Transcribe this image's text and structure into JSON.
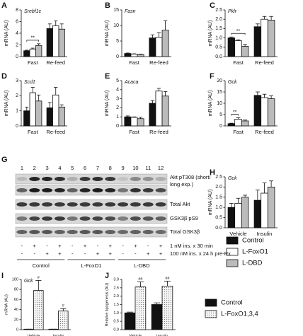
{
  "chart_data": [
    {
      "type": "bar",
      "label": "A",
      "title": "Srebf1c",
      "ylabel": "mRNA (AU)",
      "categories": [
        "Fast",
        "Re-feed"
      ],
      "series": [
        {
          "name": "Control",
          "color": "#111111",
          "values": [
            1.0,
            4.8
          ],
          "errors": [
            0.1,
            0.8
          ]
        },
        {
          "name": "L-FoxO1",
          "color": "#ffffff",
          "values": [
            1.3,
            5.3
          ],
          "errors": [
            0.15,
            0.8
          ]
        },
        {
          "name": "L-DBD",
          "color": "#bbbbbb",
          "values": [
            1.9,
            4.7
          ],
          "errors": [
            0.3,
            0.9
          ]
        }
      ],
      "ylim": [
        0,
        8
      ],
      "yticks": [
        0,
        2,
        4,
        6,
        8
      ],
      "significance": [
        {
          "text": "**",
          "category": "Fast",
          "between": [
            "Control",
            "L-DBD"
          ]
        }
      ]
    },
    {
      "type": "bar",
      "label": "B",
      "title": "Fasn",
      "ylabel": "mRNA (AU)",
      "categories": [
        "Fast",
        "Re-feed"
      ],
      "series": [
        {
          "name": "Control",
          "color": "#111111",
          "values": [
            1.0,
            6.0
          ],
          "errors": [
            0.15,
            1.0
          ]
        },
        {
          "name": "L-FoxO1",
          "color": "#ffffff",
          "values": [
            0.8,
            6.2
          ],
          "errors": [
            0.1,
            1.5
          ]
        },
        {
          "name": "L-DBD",
          "color": "#bbbbbb",
          "values": [
            0.7,
            8.5
          ],
          "errors": [
            0.1,
            3.0
          ]
        }
      ],
      "ylim": [
        0,
        15
      ],
      "yticks": [
        0,
        5,
        10,
        15
      ]
    },
    {
      "type": "bar",
      "label": "C",
      "title": "Pklr",
      "ylabel": "mRNA (AU)",
      "categories": [
        "Fast",
        "Re-feed"
      ],
      "series": [
        {
          "name": "Control",
          "color": "#111111",
          "values": [
            1.0,
            1.6
          ],
          "errors": [
            0.05,
            0.15
          ]
        },
        {
          "name": "L-FoxO1",
          "color": "#ffffff",
          "values": [
            0.85,
            2.0
          ],
          "errors": [
            0.05,
            0.15
          ]
        },
        {
          "name": "L-DBD",
          "color": "#bbbbbb",
          "values": [
            0.55,
            1.95
          ],
          "errors": [
            0.1,
            0.2
          ]
        }
      ],
      "ylim": [
        0,
        2.5
      ],
      "yticks": [
        {
          "value": 0,
          "label": "0.0"
        },
        0.5,
        {
          "value": 1,
          "label": "1.0"
        },
        1.5,
        {
          "value": 2,
          "label": "2.0"
        },
        2.5
      ],
      "significance": [
        {
          "text": "**",
          "category": "Fast",
          "between": [
            "Control",
            "L-DBD"
          ]
        }
      ]
    },
    {
      "type": "bar",
      "label": "D",
      "title": "Scd1",
      "ylabel": "mRNA (AU)",
      "categories": [
        "Fast",
        "Re-feed"
      ],
      "series": [
        {
          "name": "Control",
          "color": "#111111",
          "values": [
            1.0,
            1.2
          ],
          "errors": [
            0.25,
            0.35
          ]
        },
        {
          "name": "L-FoxO1",
          "color": "#ffffff",
          "values": [
            2.2,
            2.05
          ],
          "errors": [
            0.35,
            0.5
          ]
        },
        {
          "name": "L-DBD",
          "color": "#bbbbbb",
          "values": [
            1.65,
            1.25
          ],
          "errors": [
            0.4,
            0.15
          ]
        }
      ],
      "ylim": [
        0,
        3
      ],
      "yticks": [
        0,
        1,
        2,
        3
      ]
    },
    {
      "type": "bar",
      "label": "E",
      "title": "Acaca",
      "ylabel": "mRNA (AU)",
      "categories": [
        "Fast",
        "Re-feed"
      ],
      "series": [
        {
          "name": "Control",
          "color": "#111111",
          "values": [
            1.0,
            2.5
          ],
          "errors": [
            0.1,
            0.3
          ]
        },
        {
          "name": "L-FoxO1",
          "color": "#ffffff",
          "values": [
            0.95,
            3.85
          ],
          "errors": [
            0.05,
            0.3
          ]
        },
        {
          "name": "L-DBD",
          "color": "#bbbbbb",
          "values": [
            0.8,
            3.3
          ],
          "errors": [
            0.15,
            0.5
          ]
        }
      ],
      "ylim": [
        0,
        5
      ],
      "yticks": [
        0,
        1,
        2,
        3,
        4,
        5
      ]
    },
    {
      "type": "bar",
      "label": "F",
      "title": "Gck",
      "ylabel": "mRNA (AU)",
      "categories": [
        "Fast",
        "Re-feed"
      ],
      "series": [
        {
          "name": "Control",
          "color": "#111111",
          "values": [
            1.0,
            13.5
          ],
          "errors": [
            0.2,
            1.5
          ]
        },
        {
          "name": "L-FoxO1",
          "color": "#ffffff",
          "values": [
            3.0,
            12.5
          ],
          "errors": [
            0.6,
            1.5
          ]
        },
        {
          "name": "L-DBD",
          "color": "#bbbbbb",
          "values": [
            2.2,
            12.0
          ],
          "errors": [
            0.4,
            1.3
          ]
        }
      ],
      "ylim": [
        0,
        20
      ],
      "yticks": [
        0,
        5,
        10,
        15,
        20
      ],
      "significance": [
        {
          "text": "**",
          "category": "Fast",
          "between": [
            "Control",
            "L-FoxO1"
          ]
        }
      ]
    },
    {
      "type": "bar",
      "label": "H",
      "title": "Gck",
      "ylabel": "mRNA (AU)",
      "categories": [
        "Vehicle",
        "Insulin"
      ],
      "series": [
        {
          "name": "Control",
          "color": "#111111",
          "values": [
            1.0,
            1.35
          ],
          "errors": [
            0.2,
            0.5
          ]
        },
        {
          "name": "L-FoxO1",
          "color": "#ffffff",
          "values": [
            1.2,
            1.7
          ],
          "errors": [
            0.25,
            0.5
          ]
        },
        {
          "name": "L-DBD",
          "color": "#bbbbbb",
          "values": [
            1.5,
            2.0
          ],
          "errors": [
            0.1,
            0.3
          ]
        }
      ],
      "ylim": [
        0,
        2.5
      ],
      "yticks": [
        {
          "value": 0,
          "label": "0.0"
        },
        0.5,
        {
          "value": 1,
          "label": "1.0"
        },
        1.5,
        {
          "value": 2,
          "label": "2.0"
        },
        2.5
      ],
      "legend": true
    },
    {
      "type": "bar",
      "label": "I",
      "title": "Gck",
      "ylabel": "mRNA (AU)",
      "categories": [
        "Vehicle",
        "Insulin"
      ],
      "series": [
        {
          "name": "Control",
          "color": "#111111",
          "values": [
            1,
            1
          ],
          "errors": [
            0,
            0
          ]
        },
        {
          "name": "L-FoxO1,3,4",
          "color": "#eeeeee",
          "pattern": "dotted",
          "values": [
            78,
            37
          ],
          "errors": [
            20,
            5
          ]
        }
      ],
      "ylim": [
        0,
        100
      ],
      "yticks": [
        0,
        20,
        40,
        60,
        80,
        100
      ],
      "significance": [
        {
          "text": "#",
          "category": "Vehicle",
          "series": "L-FoxO1,3,4"
        },
        {
          "text": "#",
          "category": "Insulin",
          "series": "L-FoxO1,3,4"
        }
      ]
    },
    {
      "type": "bar",
      "label": "J",
      "ylabel": "Relative lipogenesis (AU)",
      "categories": [
        "Vehicle",
        "Insulin"
      ],
      "series": [
        {
          "name": "Control",
          "color": "#111111",
          "values": [
            1.0,
            1.5
          ],
          "errors": [
            0.05,
            0.1
          ]
        },
        {
          "name": "L-FoxO1,3,4",
          "color": "#eeeeee",
          "pattern": "dotted",
          "values": [
            2.55,
            2.6
          ],
          "errors": [
            0.3,
            0.3
          ]
        }
      ],
      "ylim": [
        0,
        3
      ],
      "yticks": [
        {
          "value": 0,
          "label": "0.0"
        },
        0.5,
        {
          "value": 1,
          "label": "1.0"
        },
        1.5,
        {
          "value": 2,
          "label": "2.0"
        },
        2.5,
        {
          "value": 3,
          "label": "3.0"
        }
      ],
      "significance": [
        {
          "text": "##",
          "category": "Vehicle",
          "series": "L-FoxO1,3,4"
        },
        {
          "text": "##",
          "category": "Insulin",
          "series": "L-FoxO1,3,4"
        }
      ],
      "legend": true
    }
  ],
  "blot": {
    "label": "G",
    "lanes": [
      "1",
      "2",
      "3",
      "4",
      "5",
      "6",
      "7",
      "8",
      "9",
      "10",
      "11",
      "12"
    ],
    "rows": [
      [
        "Akt pT308 (short/",
        "long exp.)"
      ],
      [
        "Total Akt"
      ],
      [
        "GSK3β pS9"
      ],
      [
        "Total GSK3β"
      ]
    ],
    "treatments": [
      {
        "label": "1 nM ins. x 30 min",
        "signs": [
          "-",
          "+",
          "-",
          "+",
          "-",
          "+",
          "-",
          "+",
          "-",
          "+",
          "-",
          "+"
        ]
      },
      {
        "label": "100 nM ins. x 24 h pre-Rx",
        "signs": [
          "-",
          "-",
          "+",
          "+",
          "-",
          "-",
          "+",
          "+",
          "-",
          "-",
          "+",
          "+"
        ]
      }
    ],
    "groups": [
      "Control",
      "L-FoxO1",
      "L-DBD"
    ]
  }
}
